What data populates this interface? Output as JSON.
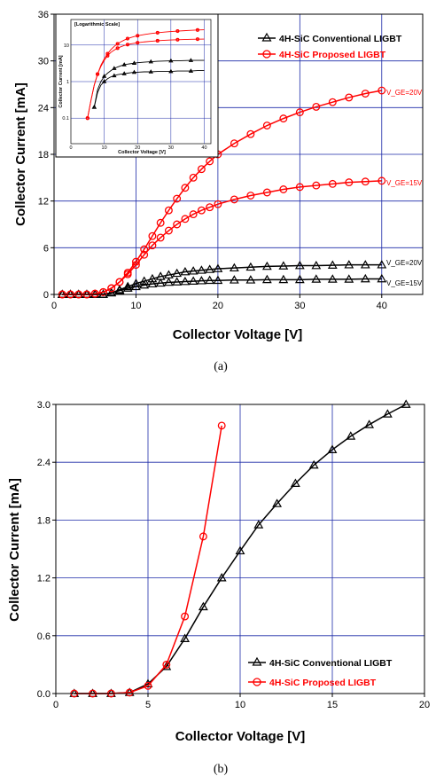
{
  "chart_data": [
    {
      "type": "line",
      "panel_label": "(a)",
      "xlabel": "Collector Voltage [V]",
      "ylabel": "Collector Current [mA]",
      "xlim": [
        0,
        45
      ],
      "ylim": [
        0,
        36
      ],
      "xticks": [
        0,
        10,
        20,
        30,
        40
      ],
      "yticks": [
        0,
        6,
        12,
        18,
        24,
        30,
        36
      ],
      "grid": true,
      "legend_position": "top-right",
      "series": [
        {
          "name": "4H-SiC Conventional LIGBT",
          "color": "#000000",
          "marker": "triangle",
          "curves": [
            {
              "label": "V_GE=20V",
              "x": [
                1,
                2,
                3,
                4,
                5,
                6,
                7,
                8,
                9,
                10,
                11,
                12,
                13,
                14,
                15,
                16,
                17,
                18,
                19,
                20,
                22,
                24,
                26,
                28,
                30,
                32,
                34,
                36,
                38,
                40
              ],
              "y": [
                0,
                0,
                0,
                0,
                0,
                0,
                0.2,
                0.6,
                1.0,
                1.4,
                1.7,
                2.0,
                2.3,
                2.5,
                2.7,
                2.9,
                3.0,
                3.1,
                3.2,
                3.3,
                3.4,
                3.5,
                3.6,
                3.65,
                3.7,
                3.7,
                3.75,
                3.8,
                3.8,
                3.8
              ]
            },
            {
              "label": "V_GE=15V",
              "x": [
                1,
                2,
                3,
                4,
                5,
                6,
                7,
                8,
                9,
                10,
                11,
                12,
                13,
                14,
                15,
                16,
                17,
                18,
                19,
                20,
                22,
                24,
                26,
                28,
                30,
                32,
                34,
                36,
                38,
                40
              ],
              "y": [
                0,
                0,
                0,
                0,
                0,
                0,
                0.2,
                0.5,
                0.8,
                1.0,
                1.2,
                1.35,
                1.45,
                1.55,
                1.6,
                1.65,
                1.7,
                1.75,
                1.8,
                1.8,
                1.85,
                1.85,
                1.9,
                1.9,
                1.9,
                1.95,
                1.95,
                1.95,
                2.0,
                2.0
              ]
            }
          ]
        },
        {
          "name": "4H-SiC Proposed LIGBT",
          "color": "#ff0000",
          "marker": "circle",
          "curves": [
            {
              "label": "V_GE=20V",
              "x": [
                1,
                2,
                3,
                4,
                5,
                6,
                7,
                8,
                9,
                10,
                11,
                12,
                13,
                14,
                15,
                16,
                17,
                18,
                19,
                20,
                22,
                24,
                26,
                28,
                30,
                32,
                34,
                36,
                38,
                40
              ],
              "y": [
                0,
                0,
                0,
                0,
                0.1,
                0.3,
                0.8,
                1.6,
                2.8,
                4.2,
                5.8,
                7.5,
                9.2,
                10.8,
                12.3,
                13.7,
                15.0,
                16.1,
                17.1,
                18.0,
                19.4,
                20.6,
                21.7,
                22.6,
                23.4,
                24.1,
                24.7,
                25.3,
                25.8,
                26.2
              ]
            },
            {
              "label": "V_GE=15V",
              "x": [
                1,
                2,
                3,
                4,
                5,
                6,
                7,
                8,
                9,
                10,
                11,
                12,
                13,
                14,
                15,
                16,
                17,
                18,
                19,
                20,
                22,
                24,
                26,
                28,
                30,
                32,
                34,
                36,
                38,
                40
              ],
              "y": [
                0,
                0,
                0,
                0,
                0.1,
                0.3,
                0.8,
                1.6,
                2.6,
                3.8,
                5.1,
                6.3,
                7.3,
                8.2,
                9.0,
                9.7,
                10.3,
                10.8,
                11.2,
                11.6,
                12.2,
                12.7,
                13.1,
                13.5,
                13.8,
                14.0,
                14.2,
                14.4,
                14.5,
                14.6
              ]
            }
          ]
        }
      ],
      "curve_annotations": [
        "V_GE=20V",
        "V_GE=15V"
      ],
      "inset": {
        "title": "[Logarithmic Scale]",
        "xlabel": "Collector Voltage [V]",
        "ylabel": "Collector Current [mA]",
        "yscale": "log",
        "xticks": [
          0,
          10,
          20,
          30,
          40
        ],
        "ytick_labels": [
          "0.1",
          "1",
          "10"
        ]
      }
    },
    {
      "type": "line",
      "panel_label": "(b)",
      "xlabel": "Collector Voltage [V]",
      "ylabel": "Collector Current [mA]",
      "xlim": [
        0,
        20
      ],
      "ylim": [
        0,
        3.0
      ],
      "xticks": [
        0,
        5,
        10,
        15,
        20
      ],
      "yticks": [
        0.0,
        0.6,
        1.2,
        1.8,
        2.4,
        3.0
      ],
      "grid": true,
      "legend_position": "bottom-right",
      "series": [
        {
          "name": "4H-SiC Conventional LIGBT",
          "color": "#000000",
          "marker": "triangle",
          "x": [
            1,
            2,
            3,
            4,
            5,
            6,
            7,
            8,
            9,
            10,
            11,
            12,
            13,
            14,
            15,
            16,
            17,
            18,
            19
          ],
          "y": [
            0,
            0,
            0,
            0.01,
            0.1,
            0.28,
            0.57,
            0.9,
            1.2,
            1.48,
            1.75,
            1.97,
            2.18,
            2.37,
            2.53,
            2.67,
            2.79,
            2.9,
            3.0
          ]
        },
        {
          "name": "4H-SiC Proposed LIGBT",
          "color": "#ff0000",
          "marker": "circle",
          "x": [
            1,
            2,
            3,
            4,
            5,
            6,
            7,
            8,
            9
          ],
          "y": [
            0,
            0,
            0,
            0.01,
            0.08,
            0.3,
            0.8,
            1.63,
            2.78
          ]
        }
      ]
    }
  ]
}
